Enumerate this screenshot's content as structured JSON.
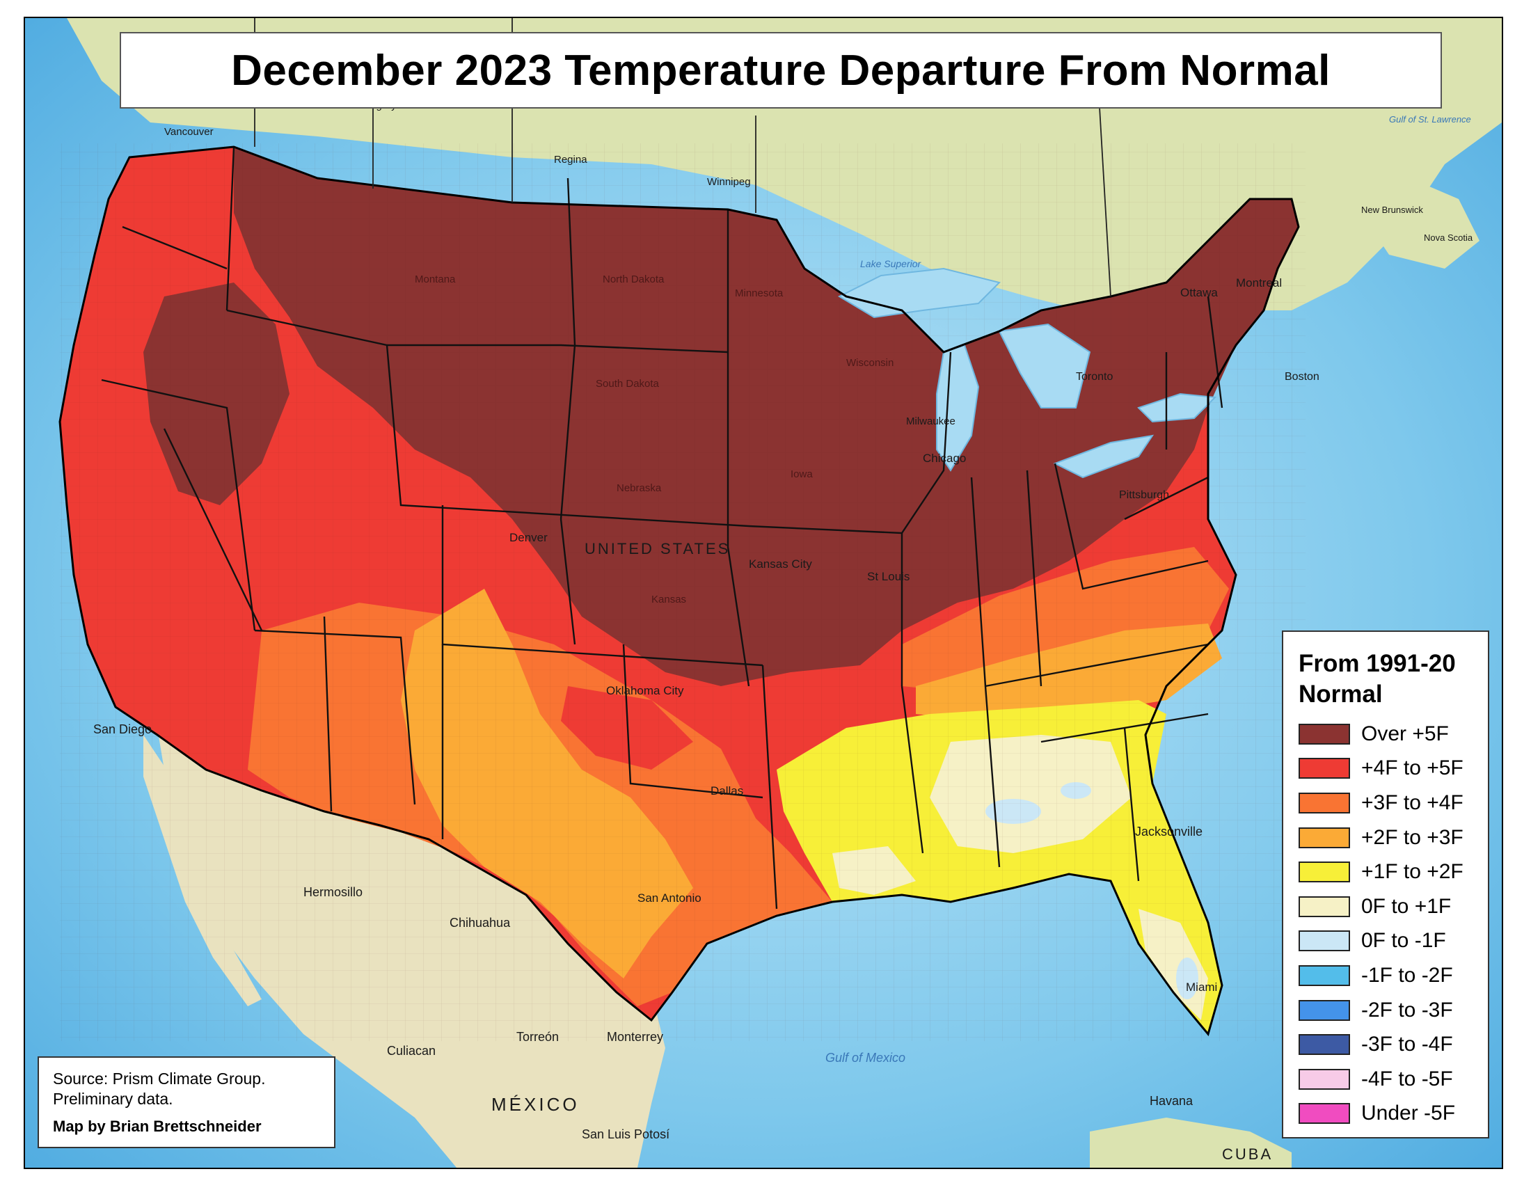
{
  "map": {
    "title": "December 2023 Temperature Departure From Normal",
    "country_label": "UNITED STATES",
    "legend": {
      "title_line1": "From 1991-20",
      "title_line2": "Normal",
      "items": [
        {
          "label": "Over +5F",
          "color": "#8b3331"
        },
        {
          "label": "+4F to +5F",
          "color": "#ee3b34"
        },
        {
          "label": "+3F to +4F",
          "color": "#f97433"
        },
        {
          "label": "+2F to +3F",
          "color": "#fbaa36"
        },
        {
          "label": "+1F to +2F",
          "color": "#f7ef38"
        },
        {
          "label": "0F to +1F",
          "color": "#f6f1c6"
        },
        {
          "label": "0F to -1F",
          "color": "#cbe7f6"
        },
        {
          "label": "-1F to -2F",
          "color": "#53bdea"
        },
        {
          "label": "-2F to -3F",
          "color": "#4493ea"
        },
        {
          "label": "-3F to -4F",
          "color": "#3d5aa4"
        },
        {
          "label": "-4F to -5F",
          "color": "#f7cbe7"
        },
        {
          "label": "Under -5F",
          "color": "#f04cc0"
        }
      ]
    },
    "source": {
      "line1": "Source: Prism Climate Group.",
      "line2": "Preliminary data.",
      "credit": "Map by Brian Brettschneider"
    },
    "cities": [
      "Calgary",
      "Regina",
      "Winnipeg",
      "Vancouver",
      "Lake Superior",
      "Ottawa",
      "Montreal",
      "Toronto",
      "Chicago",
      "Milwaukee",
      "Kansas City",
      "St Louis",
      "Denver",
      "Oklahoma City",
      "Dallas",
      "San Antonio",
      "Jacksonville",
      "Miami",
      "Havana",
      "Hermosillo",
      "Chihuahua",
      "Culiacan",
      "Torreón",
      "Monterrey",
      "San Diego",
      "Boston",
      "Pittsburgh",
      "San Luis Potosí"
    ],
    "regions": [
      "MÉXICO",
      "Gulf of Mexico",
      "Gulf of St. Lawrence",
      "New Brunswick",
      "Nova Scotia",
      "CUBA"
    ],
    "states": [
      "Montana",
      "North Dakota",
      "South Dakota",
      "Minnesota",
      "Nebraska",
      "Kansas",
      "Wisconsin",
      "Iowa"
    ]
  }
}
